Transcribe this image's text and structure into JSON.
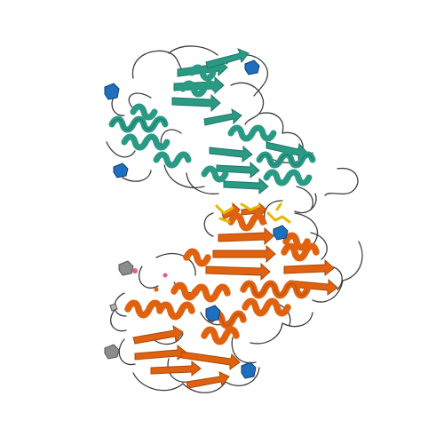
{
  "image": {
    "subject": "protein-ribbon-structure",
    "background": "#ffffff",
    "colors": {
      "chain_a": "#2a9a85",
      "chain_a_dark": "#1d7565",
      "chain_b": "#e0620f",
      "chain_b_dark": "#a8470a",
      "loop": "#3d3d3d",
      "glycan_blue": "#1f6fbf",
      "glycan_grey": "#8c8c8c",
      "ligand_yellow": "#e6b800"
    }
  }
}
